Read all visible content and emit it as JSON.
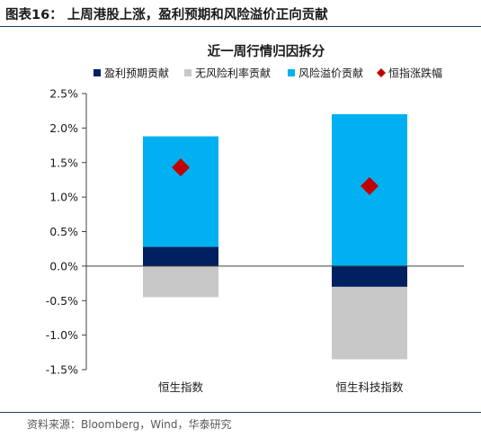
{
  "figure": {
    "title": "图表16：  上周港股上涨，盈利预期和风险溢价正向贡献",
    "source": "资料来源：Bloomberg，Wind，华泰研究"
  },
  "chart_data": {
    "type": "bar",
    "stacked": true,
    "title": "近一周行情归因拆分",
    "categories": [
      "恒生指数",
      "恒生科技指数"
    ],
    "series": [
      {
        "name": "盈利预期贡献",
        "kind": "bar",
        "color": "#002060",
        "values": [
          0.28,
          -0.3
        ]
      },
      {
        "name": "无风险利率贡献",
        "kind": "bar",
        "color": "#c8c8c8",
        "values": [
          -0.45,
          -1.05
        ]
      },
      {
        "name": "风险溢价贡献",
        "kind": "bar",
        "color": "#00b0f0",
        "values": [
          1.6,
          2.2
        ]
      },
      {
        "name": "恒指涨跌幅",
        "kind": "marker",
        "marker": "diamond",
        "color": "#c00000",
        "values": [
          1.43,
          1.16
        ]
      }
    ],
    "ylim": [
      -1.5,
      2.5
    ],
    "yticks": [
      -1.5,
      -1.0,
      -0.5,
      0.0,
      0.5,
      1.0,
      1.5,
      2.0,
      2.5
    ],
    "ytick_labels": [
      "-1.5%",
      "-1.0%",
      "-0.5%",
      "0.0%",
      "0.5%",
      "1.0%",
      "1.5%",
      "2.0%",
      "2.5%"
    ],
    "legend_position": "top",
    "grid": false
  }
}
